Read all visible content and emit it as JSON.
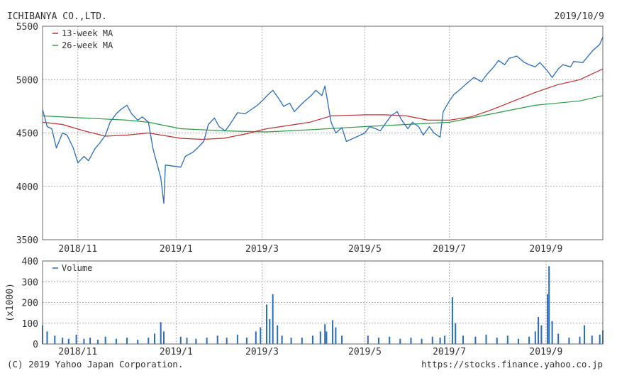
{
  "header": {
    "company": "ICHIBANYA CO.,LTD.",
    "date": "2019/10/9"
  },
  "footer": {
    "copyright": "(C) 2019 Yahoo Japan Corporation.",
    "url": "https://stocks.finance.yahoo.co.jp"
  },
  "colors": {
    "price": "#2a6cb5",
    "ma13": "#c03030",
    "ma26": "#2a9a45",
    "volume": "#2a6cb5",
    "grid": "#aaaaaa",
    "frame": "#666666"
  },
  "chart_data": [
    {
      "type": "line",
      "title": "",
      "xlabel": "",
      "ylabel": "",
      "ylim": [
        3500,
        5500
      ],
      "yticks": [
        3500,
        4000,
        4500,
        5000,
        5500
      ],
      "xlim": [
        "2018-10-09",
        "2019-10-09"
      ],
      "xticks": [
        {
          "label": "2018/11",
          "date": "2018-11-01"
        },
        {
          "label": "2019/1",
          "date": "2019-01-04"
        },
        {
          "label": "2019/3",
          "date": "2019-03-01"
        },
        {
          "label": "2019/5",
          "date": "2019-05-07"
        },
        {
          "label": "2019/7",
          "date": "2019-07-01"
        },
        {
          "label": "2019/9",
          "date": "2019-09-02"
        }
      ],
      "grid": true,
      "legend_position": "top-left",
      "series": [
        {
          "name": "",
          "key": "price",
          "points": [
            [
              "2018-10-09",
              4720
            ],
            [
              "2018-10-12",
              4560
            ],
            [
              "2018-10-15",
              4540
            ],
            [
              "2018-10-18",
              4360
            ],
            [
              "2018-10-22",
              4500
            ],
            [
              "2018-10-25",
              4480
            ],
            [
              "2018-10-29",
              4360
            ],
            [
              "2018-11-01",
              4220
            ],
            [
              "2018-11-05",
              4280
            ],
            [
              "2018-11-08",
              4240
            ],
            [
              "2018-11-12",
              4350
            ],
            [
              "2018-11-15",
              4400
            ],
            [
              "2018-11-19",
              4480
            ],
            [
              "2018-11-22",
              4600
            ],
            [
              "2018-11-26",
              4680
            ],
            [
              "2018-11-29",
              4720
            ],
            [
              "2018-12-03",
              4760
            ],
            [
              "2018-12-06",
              4680
            ],
            [
              "2018-12-10",
              4620
            ],
            [
              "2018-12-13",
              4650
            ],
            [
              "2018-12-17",
              4600
            ],
            [
              "2018-12-20",
              4350
            ],
            [
              "2018-12-25",
              4080
            ],
            [
              "2018-12-27",
              3840
            ],
            [
              "2018-12-28",
              4200
            ],
            [
              "2019-01-07",
              4180
            ],
            [
              "2019-01-10",
              4280
            ],
            [
              "2019-01-15",
              4320
            ],
            [
              "2019-01-18",
              4360
            ],
            [
              "2019-01-22",
              4420
            ],
            [
              "2019-01-25",
              4580
            ],
            [
              "2019-01-29",
              4640
            ],
            [
              "2019-02-01",
              4560
            ],
            [
              "2019-02-05",
              4520
            ],
            [
              "2019-02-08",
              4580
            ],
            [
              "2019-02-13",
              4690
            ],
            [
              "2019-02-18",
              4680
            ],
            [
              "2019-02-22",
              4720
            ],
            [
              "2019-02-26",
              4760
            ],
            [
              "2019-03-01",
              4800
            ],
            [
              "2019-03-05",
              4860
            ],
            [
              "2019-03-08",
              4900
            ],
            [
              "2019-03-12",
              4820
            ],
            [
              "2019-03-15",
              4750
            ],
            [
              "2019-03-19",
              4780
            ],
            [
              "2019-03-22",
              4700
            ],
            [
              "2019-03-26",
              4760
            ],
            [
              "2019-03-29",
              4800
            ],
            [
              "2019-04-02",
              4850
            ],
            [
              "2019-04-05",
              4900
            ],
            [
              "2019-04-09",
              4850
            ],
            [
              "2019-04-11",
              4940
            ],
            [
              "2019-04-15",
              4600
            ],
            [
              "2019-04-18",
              4500
            ],
            [
              "2019-04-22",
              4550
            ],
            [
              "2019-04-25",
              4420
            ],
            [
              "2019-05-07",
              4500
            ],
            [
              "2019-05-10",
              4560
            ],
            [
              "2019-05-14",
              4540
            ],
            [
              "2019-05-17",
              4520
            ],
            [
              "2019-05-21",
              4600
            ],
            [
              "2019-05-24",
              4660
            ],
            [
              "2019-05-28",
              4700
            ],
            [
              "2019-05-31",
              4620
            ],
            [
              "2019-06-04",
              4540
            ],
            [
              "2019-06-07",
              4600
            ],
            [
              "2019-06-11",
              4560
            ],
            [
              "2019-06-14",
              4480
            ],
            [
              "2019-06-18",
              4560
            ],
            [
              "2019-06-21",
              4500
            ],
            [
              "2019-06-25",
              4460
            ],
            [
              "2019-06-27",
              4700
            ],
            [
              "2019-07-01",
              4800
            ],
            [
              "2019-07-04",
              4860
            ],
            [
              "2019-07-09",
              4920
            ],
            [
              "2019-07-12",
              4960
            ],
            [
              "2019-07-17",
              5020
            ],
            [
              "2019-07-22",
              4980
            ],
            [
              "2019-07-25",
              5040
            ],
            [
              "2019-07-30",
              5120
            ],
            [
              "2019-08-02",
              5180
            ],
            [
              "2019-08-06",
              5140
            ],
            [
              "2019-08-09",
              5200
            ],
            [
              "2019-08-14",
              5220
            ],
            [
              "2019-08-19",
              5160
            ],
            [
              "2019-08-22",
              5140
            ],
            [
              "2019-08-26",
              5120
            ],
            [
              "2019-08-29",
              5160
            ],
            [
              "2019-09-03",
              5080
            ],
            [
              "2019-09-06",
              5020
            ],
            [
              "2019-09-10",
              5100
            ],
            [
              "2019-09-13",
              5140
            ],
            [
              "2019-09-18",
              5120
            ],
            [
              "2019-09-20",
              5170
            ],
            [
              "2019-09-26",
              5160
            ],
            [
              "2019-09-30",
              5230
            ],
            [
              "2019-10-03",
              5280
            ],
            [
              "2019-10-07",
              5330
            ],
            [
              "2019-10-09",
              5400
            ]
          ]
        },
        {
          "name": "13-week MA",
          "key": "ma13",
          "points": [
            [
              "2018-10-09",
              4600
            ],
            [
              "2018-10-22",
              4580
            ],
            [
              "2018-11-05",
              4520
            ],
            [
              "2018-11-19",
              4470
            ],
            [
              "2018-12-03",
              4480
            ],
            [
              "2018-12-17",
              4500
            ],
            [
              "2019-01-07",
              4450
            ],
            [
              "2019-01-21",
              4440
            ],
            [
              "2019-02-04",
              4450
            ],
            [
              "2019-02-18",
              4490
            ],
            [
              "2019-03-04",
              4540
            ],
            [
              "2019-03-18",
              4570
            ],
            [
              "2019-04-01",
              4600
            ],
            [
              "2019-04-15",
              4660
            ],
            [
              "2019-05-07",
              4670
            ],
            [
              "2019-05-20",
              4670
            ],
            [
              "2019-06-03",
              4660
            ],
            [
              "2019-06-17",
              4620
            ],
            [
              "2019-07-01",
              4620
            ],
            [
              "2019-07-15",
              4650
            ],
            [
              "2019-07-29",
              4720
            ],
            [
              "2019-08-12",
              4800
            ],
            [
              "2019-08-26",
              4880
            ],
            [
              "2019-09-09",
              4950
            ],
            [
              "2019-09-24",
              5000
            ],
            [
              "2019-10-09",
              5100
            ]
          ]
        },
        {
          "name": "26-week MA",
          "key": "ma26",
          "points": [
            [
              "2018-10-09",
              4660
            ],
            [
              "2018-11-05",
              4640
            ],
            [
              "2018-12-03",
              4620
            ],
            [
              "2018-12-17",
              4600
            ],
            [
              "2019-01-07",
              4540
            ],
            [
              "2019-02-04",
              4520
            ],
            [
              "2019-03-04",
              4510
            ],
            [
              "2019-04-01",
              4530
            ],
            [
              "2019-05-07",
              4560
            ],
            [
              "2019-06-03",
              4580
            ],
            [
              "2019-07-01",
              4600
            ],
            [
              "2019-07-29",
              4680
            ],
            [
              "2019-08-26",
              4760
            ],
            [
              "2019-09-24",
              4800
            ],
            [
              "2019-10-09",
              4850
            ]
          ]
        }
      ]
    },
    {
      "type": "bar",
      "title": "",
      "xlabel": "",
      "ylabel": "(x1000)",
      "ylim": [
        0,
        400
      ],
      "yticks": [
        0,
        100,
        200,
        300,
        400
      ],
      "xlim": [
        "2018-10-09",
        "2019-10-09"
      ],
      "xticks": [
        {
          "label": "2018/11",
          "date": "2018-11-01"
        },
        {
          "label": "2019/1",
          "date": "2019-01-04"
        },
        {
          "label": "2019/3",
          "date": "2019-03-01"
        },
        {
          "label": "2019/5",
          "date": "2019-05-07"
        },
        {
          "label": "2019/7",
          "date": "2019-07-01"
        },
        {
          "label": "2019/9",
          "date": "2019-09-02"
        }
      ],
      "grid": true,
      "legend_position": "top-left",
      "series": [
        {
          "name": "Volume",
          "key": "volume",
          "points": [
            [
              "2018-10-09",
              90
            ],
            [
              "2018-10-12",
              60
            ],
            [
              "2018-10-17",
              40
            ],
            [
              "2018-10-22",
              30
            ],
            [
              "2018-10-26",
              25
            ],
            [
              "2018-10-31",
              45
            ],
            [
              "2018-11-05",
              25
            ],
            [
              "2018-11-09",
              30
            ],
            [
              "2018-11-14",
              20
            ],
            [
              "2018-11-19",
              35
            ],
            [
              "2018-11-26",
              25
            ],
            [
              "2018-12-03",
              30
            ],
            [
              "2018-12-10",
              20
            ],
            [
              "2018-12-17",
              30
            ],
            [
              "2018-12-21",
              50
            ],
            [
              "2018-12-25",
              105
            ],
            [
              "2018-12-27",
              60
            ],
            [
              "2019-01-07",
              35
            ],
            [
              "2019-01-11",
              30
            ],
            [
              "2019-01-17",
              25
            ],
            [
              "2019-01-24",
              30
            ],
            [
              "2019-01-31",
              40
            ],
            [
              "2019-02-06",
              30
            ],
            [
              "2019-02-13",
              45
            ],
            [
              "2019-02-19",
              30
            ],
            [
              "2019-02-25",
              60
            ],
            [
              "2019-02-28",
              80
            ],
            [
              "2019-03-04",
              190
            ],
            [
              "2019-03-06",
              120
            ],
            [
              "2019-03-08",
              240
            ],
            [
              "2019-03-11",
              90
            ],
            [
              "2019-03-14",
              40
            ],
            [
              "2019-03-20",
              30
            ],
            [
              "2019-03-27",
              30
            ],
            [
              "2019-04-03",
              40
            ],
            [
              "2019-04-08",
              60
            ],
            [
              "2019-04-11",
              95
            ],
            [
              "2019-04-12",
              60
            ],
            [
              "2019-04-16",
              115
            ],
            [
              "2019-04-18",
              80
            ],
            [
              "2019-04-22",
              40
            ],
            [
              "2019-05-09",
              40
            ],
            [
              "2019-05-16",
              30
            ],
            [
              "2019-05-23",
              35
            ],
            [
              "2019-05-30",
              25
            ],
            [
              "2019-06-06",
              30
            ],
            [
              "2019-06-13",
              25
            ],
            [
              "2019-06-20",
              35
            ],
            [
              "2019-06-25",
              30
            ],
            [
              "2019-06-28",
              40
            ],
            [
              "2019-07-03",
              225
            ],
            [
              "2019-07-05",
              100
            ],
            [
              "2019-07-10",
              40
            ],
            [
              "2019-07-18",
              35
            ],
            [
              "2019-07-25",
              45
            ],
            [
              "2019-08-01",
              30
            ],
            [
              "2019-08-08",
              40
            ],
            [
              "2019-08-15",
              25
            ],
            [
              "2019-08-22",
              35
            ],
            [
              "2019-08-26",
              60
            ],
            [
              "2019-08-28",
              130
            ],
            [
              "2019-08-30",
              90
            ],
            [
              "2019-09-03",
              240
            ],
            [
              "2019-09-04",
              375
            ],
            [
              "2019-09-06",
              110
            ],
            [
              "2019-09-10",
              50
            ],
            [
              "2019-09-17",
              30
            ],
            [
              "2019-09-24",
              35
            ],
            [
              "2019-09-27",
              90
            ],
            [
              "2019-10-02",
              40
            ],
            [
              "2019-10-07",
              45
            ],
            [
              "2019-10-09",
              65
            ]
          ]
        }
      ]
    }
  ]
}
